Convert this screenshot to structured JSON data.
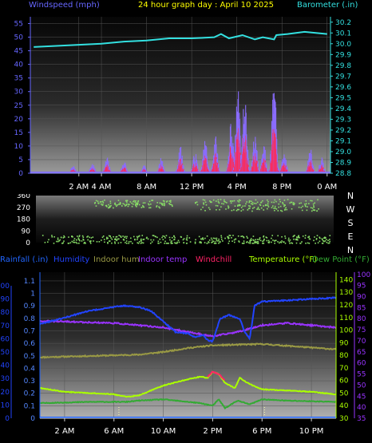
{
  "header": {
    "windspeed_label": "Windspeed (mph)",
    "title": "24 hour graph day : April 10 2025",
    "barometer_label": "Barometer (.in)"
  },
  "direction_letters": [
    "N",
    "W",
    "S",
    "E",
    "N"
  ],
  "legend2": {
    "rainfall": "Rainfall (.in)",
    "humidity": "Humidity",
    "indoor_hum": "Indoor hum",
    "indoor_temp": "Indoor temp",
    "windchill": "Windchill",
    "temperature": "Temperature (°F)",
    "dew_point": "Dew Point (°F)"
  },
  "colors": {
    "windspeed_label": "#6666ff",
    "title": "#ffff00",
    "barometer": "#33e0e0",
    "humidity": "#2244ff",
    "indoor_hum": "#999944",
    "indoor_temp": "#9933ff",
    "windchill": "#ff2266",
    "temperature": "#aaff00",
    "dew_point": "#33aa33",
    "rainfall": "#2266ff",
    "direction": "#88dd66"
  },
  "chart_data": [
    {
      "type": "area",
      "name": "wind",
      "x_ticks": [
        "2 AM",
        "4 AM",
        "8 AM",
        "12 PM",
        "4 PM",
        "8 PM",
        "0 AM"
      ],
      "x_tick_hours": [
        2,
        4,
        8,
        12,
        16,
        20,
        24
      ],
      "xlim_hours": [
        -2.3,
        24.3
      ],
      "y_left_ticks": [
        0,
        5,
        10,
        15,
        20,
        25,
        30,
        35,
        40,
        45,
        50,
        55
      ],
      "ylim_left": [
        0,
        57.5
      ],
      "y_right_ticks": [
        28.8,
        28.9,
        29.0,
        29.1,
        29.2,
        29.3,
        29.4,
        29.5,
        29.6,
        29.7,
        29.8,
        29.9,
        30.0,
        30.1,
        30.2
      ],
      "ylim_right": [
        28.8,
        30.25
      ],
      "gust_peaks": [
        {
          "hour": 1.5,
          "mph": 3
        },
        {
          "hour": 3.2,
          "mph": 4
        },
        {
          "hour": 4.5,
          "mph": 6
        },
        {
          "hour": 6.0,
          "mph": 5
        },
        {
          "hour": 7.8,
          "mph": 3
        },
        {
          "hour": 9.3,
          "mph": 6
        },
        {
          "hour": 11.0,
          "mph": 10
        },
        {
          "hour": 12.3,
          "mph": 8
        },
        {
          "hour": 13.2,
          "mph": 13
        },
        {
          "hour": 14.1,
          "mph": 14
        },
        {
          "hour": 15.5,
          "mph": 20
        },
        {
          "hour": 16.1,
          "mph": 35
        },
        {
          "hour": 16.7,
          "mph": 30
        },
        {
          "hour": 17.6,
          "mph": 16
        },
        {
          "hour": 18.4,
          "mph": 12
        },
        {
          "hour": 19.3,
          "mph": 36
        },
        {
          "hour": 20.2,
          "mph": 8
        },
        {
          "hour": 22.5,
          "mph": 10
        },
        {
          "hour": 23.5,
          "mph": 6
        }
      ],
      "barometer": {
        "hours": [
          -2,
          0,
          2,
          4,
          6,
          8,
          10,
          12,
          14,
          14.6,
          15.3,
          16.5,
          17.6,
          18.3,
          19.3,
          19.5,
          20.5,
          22,
          24
        ],
        "values": [
          29.97,
          29.98,
          29.99,
          30.0,
          30.02,
          30.03,
          30.05,
          30.05,
          30.06,
          30.09,
          30.05,
          30.08,
          30.04,
          30.06,
          30.04,
          30.08,
          30.09,
          30.11,
          30.09
        ]
      }
    },
    {
      "type": "scatter",
      "name": "wind_direction",
      "y_ticks": [
        0,
        90,
        180,
        270,
        360
      ],
      "ylim": [
        0,
        360
      ],
      "bands": [
        {
          "from_hour": -1.5,
          "to_hour": 24,
          "center_deg": 25,
          "spread_deg": 35
        },
        {
          "from_hour": 3,
          "to_hour": 10,
          "center_deg": 300,
          "spread_deg": 30
        },
        {
          "from_hour": 12,
          "to_hour": 23,
          "center_deg": 290,
          "spread_deg": 45
        }
      ]
    },
    {
      "type": "line",
      "name": "humidity_temperature",
      "x_ticks": [
        "2 AM",
        "6 AM",
        "10 AM",
        "2 PM",
        "6 PM",
        "10 PM"
      ],
      "x_tick_hours": [
        2,
        6,
        10,
        14,
        18,
        22
      ],
      "xlim_hours": [
        0,
        24
      ],
      "rain_axis_ticks": [
        0,
        0.1,
        0.2,
        0.3,
        0.4,
        0.5,
        0.6,
        0.7,
        0.8,
        0.9,
        1,
        1.1
      ],
      "rain_ylim": [
        0,
        1.17
      ],
      "humidity_axis_ticks": [
        0,
        10,
        20,
        30,
        40,
        50,
        60,
        70,
        80,
        90,
        100
      ],
      "temp_axis_ticks": [
        30,
        40,
        50,
        60,
        70,
        80,
        90,
        100,
        110,
        120,
        130,
        140
      ],
      "temp_ylim": [
        30,
        146
      ],
      "indoor_temp_axis_ticks": [
        35,
        40,
        45,
        50,
        55,
        60,
        65,
        70,
        75,
        80,
        85,
        90,
        95,
        100
      ],
      "indoor_temp_ylim": [
        35,
        101
      ],
      "series": [
        {
          "name": "Humidity",
          "axis": "humidity",
          "hours": [
            0,
            2,
            4,
            6,
            7,
            8,
            9,
            10,
            11,
            12,
            12.6,
            13.2,
            13.6,
            14,
            14.6,
            15.3,
            16.2,
            16.6,
            17,
            17.4,
            18,
            20,
            22,
            24
          ],
          "values": [
            71,
            76,
            81,
            84,
            85,
            84,
            81,
            73,
            65,
            64,
            61,
            63,
            59,
            58,
            75,
            78,
            75,
            65,
            60,
            85,
            88,
            89,
            90,
            91
          ]
        },
        {
          "name": "Indoor hum",
          "axis": "humidity",
          "hours": [
            0,
            4,
            8,
            10,
            12,
            14,
            18,
            24
          ],
          "values": [
            46,
            47,
            48,
            50,
            53,
            55,
            56,
            52
          ]
        },
        {
          "name": "Indoor temp",
          "axis": "indoor_temp",
          "hours": [
            0,
            6,
            10,
            12,
            14,
            16,
            18,
            20,
            24
          ],
          "values": [
            79,
            78,
            76,
            74,
            72,
            74,
            77,
            78,
            76
          ]
        },
        {
          "name": "Temperature (°F)",
          "axis": "temp",
          "hours": [
            0,
            2,
            4,
            6,
            7,
            8,
            10,
            12,
            13,
            13.6,
            14,
            14.5,
            15,
            15.8,
            16.2,
            17,
            18,
            20,
            22,
            24
          ],
          "values": [
            54,
            51,
            50,
            49,
            47,
            48,
            56,
            61,
            63,
            62,
            67,
            65,
            58,
            54,
            62,
            57,
            53,
            52,
            51,
            49
          ]
        },
        {
          "name": "Windchill",
          "axis": "temp",
          "hours": [
            13.6,
            14,
            14.5,
            15
          ],
          "values": [
            63,
            67,
            65,
            60
          ]
        },
        {
          "name": "Dew Point (°F)",
          "axis": "temp",
          "hours": [
            0,
            4,
            7,
            8,
            10,
            12,
            13,
            14,
            14.5,
            15,
            16,
            17,
            18,
            20,
            24
          ],
          "values": [
            42,
            43,
            43,
            44,
            45,
            43,
            42,
            40,
            45,
            38,
            44,
            41,
            45,
            44,
            43
          ]
        }
      ]
    }
  ]
}
